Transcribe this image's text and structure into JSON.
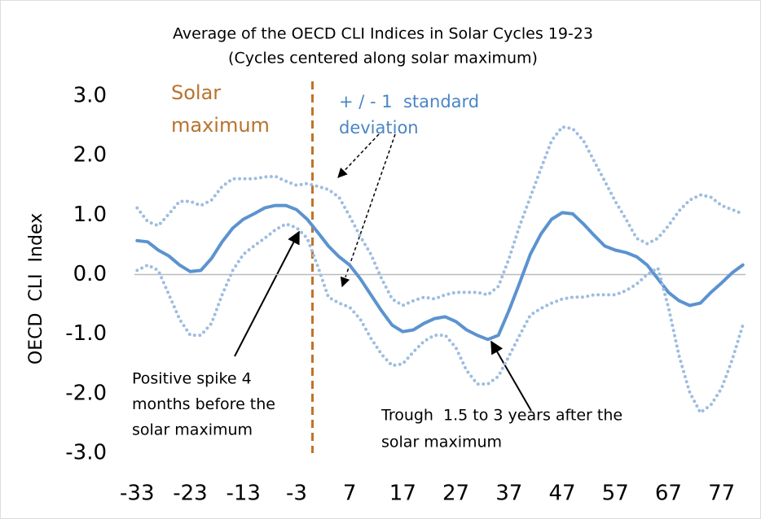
{
  "chart_data": {
    "type": "line",
    "title": [
      "Average of the OECD CLI Indices in Solar Cycles 19-23",
      "(Cycles centered along solar maximum)"
    ],
    "ylabel": "OECD  CLI  Index",
    "x": [
      -33,
      -31,
      -29,
      -27,
      -25,
      -23,
      -21,
      -19,
      -17,
      -15,
      -13,
      -11,
      -9,
      -7,
      -5,
      -3,
      -1,
      1,
      3,
      5,
      7,
      9,
      11,
      13,
      15,
      17,
      19,
      21,
      23,
      25,
      27,
      29,
      31,
      33,
      35,
      37,
      39,
      41,
      43,
      45,
      47,
      49,
      51,
      53,
      55,
      57,
      59,
      61,
      63,
      65,
      67,
      69,
      71,
      73,
      75,
      77,
      79,
      81
    ],
    "series": [
      {
        "color": "#5b93cf",
        "style": "solid",
        "values": [
          0.57,
          0.55,
          0.41,
          0.31,
          0.16,
          0.05,
          0.07,
          0.27,
          0.55,
          0.78,
          0.93,
          1.02,
          1.12,
          1.16,
          1.16,
          1.09,
          0.93,
          0.71,
          0.48,
          0.3,
          0.16,
          -0.07,
          -0.34,
          -0.61,
          -0.85,
          -0.96,
          -0.93,
          -0.82,
          -0.74,
          -0.71,
          -0.79,
          -0.93,
          -1.02,
          -1.09,
          -1.02,
          -0.6,
          -0.14,
          0.34,
          0.68,
          0.93,
          1.04,
          1.02,
          0.85,
          0.66,
          0.48,
          0.41,
          0.37,
          0.3,
          0.16,
          -0.07,
          -0.3,
          -0.44,
          -0.52,
          -0.48,
          -0.3,
          -0.14,
          0.03,
          0.16
        ]
      },
      {
        "color": "#9ebde0",
        "style": "dotted",
        "values": [
          1.12,
          0.89,
          0.82,
          1.02,
          1.23,
          1.23,
          1.16,
          1.25,
          1.48,
          1.61,
          1.61,
          1.61,
          1.64,
          1.65,
          1.57,
          1.5,
          1.53,
          1.48,
          1.43,
          1.3,
          0.98,
          0.64,
          0.34,
          -0.07,
          -0.41,
          -0.52,
          -0.44,
          -0.38,
          -0.41,
          -0.34,
          -0.3,
          -0.3,
          -0.3,
          -0.34,
          -0.2,
          0.27,
          0.82,
          1.3,
          1.78,
          2.25,
          2.48,
          2.45,
          2.25,
          1.91,
          1.57,
          1.23,
          0.93,
          0.61,
          0.52,
          0.61,
          0.82,
          1.07,
          1.25,
          1.34,
          1.3,
          1.16,
          1.09,
          1.02
        ]
      },
      {
        "color": "#9ebde0",
        "style": "dotted",
        "values": [
          0.07,
          0.16,
          0.07,
          -0.34,
          -0.75,
          -1.02,
          -1.02,
          -0.82,
          -0.34,
          0.07,
          0.34,
          0.48,
          0.61,
          0.75,
          0.85,
          0.79,
          0.61,
          0.14,
          -0.38,
          -0.48,
          -0.55,
          -0.75,
          -1.07,
          -1.34,
          -1.53,
          -1.5,
          -1.3,
          -1.12,
          -1.02,
          -1.02,
          -1.23,
          -1.61,
          -1.84,
          -1.84,
          -1.71,
          -1.37,
          -1.02,
          -0.68,
          -0.57,
          -0.48,
          -0.41,
          -0.38,
          -0.38,
          -0.34,
          -0.34,
          -0.34,
          -0.27,
          -0.16,
          0.0,
          0.11,
          -0.55,
          -1.37,
          -1.98,
          -2.32,
          -2.19,
          -1.91,
          -1.43,
          -0.85
        ]
      }
    ],
    "xlim": [
      -33.5,
      81.5
    ],
    "xticks": [
      -33,
      -23,
      -13,
      -3,
      7,
      17,
      27,
      37,
      47,
      57,
      67,
      77
    ],
    "ylim": [
      -3,
      3
    ],
    "yticks": [
      {
        "value": 3,
        "label": "3.0"
      },
      {
        "value": 2,
        "label": "2.0"
      },
      {
        "value": 1,
        "label": "1.0"
      },
      {
        "value": 0,
        "label": "0.0"
      },
      {
        "value": -1,
        "label": "-1.0"
      },
      {
        "value": -2,
        "label": "-2.0"
      },
      {
        "value": -3,
        "label": "-3.0"
      }
    ],
    "solar_max_x": 0,
    "solar_max_color": "#c0722a",
    "annotations": [
      {
        "lines": [
          "Solar",
          "maximum"
        ],
        "color": "#b8732d"
      },
      {
        "lines": [
          "+ / - 1  standard",
          "deviation"
        ],
        "color": "#4a86c5"
      },
      {
        "lines": [
          "Positive spike 4",
          "months before the",
          "solar maximum"
        ],
        "color": "#000000"
      },
      {
        "lines": [
          "Trough  1.5 to 3 years after the",
          "solar maximum"
        ],
        "color": "#000000"
      }
    ]
  }
}
